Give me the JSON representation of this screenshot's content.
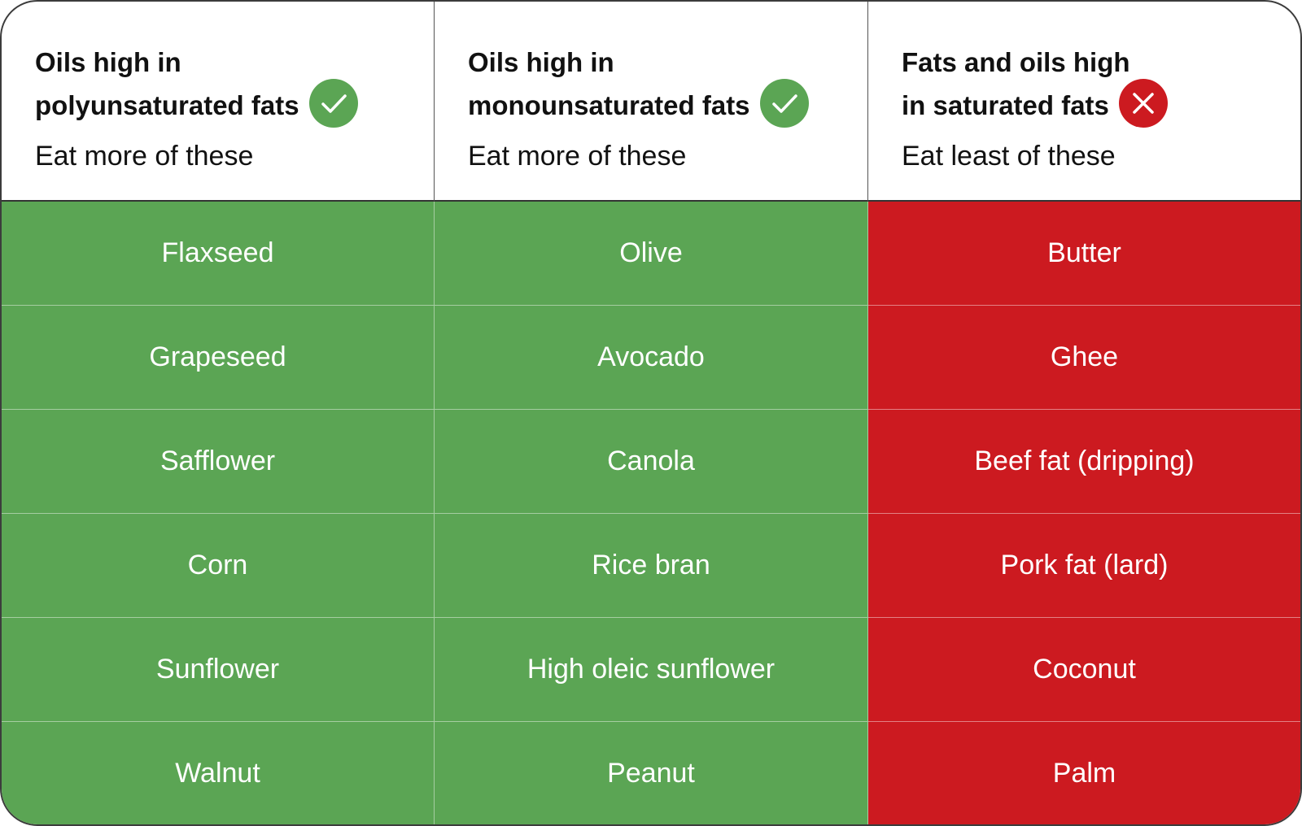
{
  "colors": {
    "good": "#5ba554",
    "bad": "#cc1a20"
  },
  "columns": [
    {
      "title_line1": "Oils high in",
      "title_line2": "polyunsaturated fats",
      "subtitle": "Eat more of these",
      "icon": "check-circle-icon",
      "items": [
        "Flaxseed",
        "Grapeseed",
        "Safflower",
        "Corn",
        "Sunflower",
        "Walnut"
      ]
    },
    {
      "title_line1": "Oils high in",
      "title_line2": "monounsaturated fats",
      "subtitle": "Eat more of these",
      "icon": "check-circle-icon",
      "items": [
        "Olive",
        "Avocado",
        "Canola",
        "Rice bran",
        "High oleic sunflower",
        "Peanut"
      ]
    },
    {
      "title_line1": "Fats and oils high",
      "title_line2": "in saturated fats",
      "subtitle": "Eat least of these",
      "icon": "x-circle-icon",
      "items": [
        "Butter",
        "Ghee",
        "Beef fat (dripping)",
        "Pork fat (lard)",
        "Coconut",
        "Palm"
      ]
    }
  ]
}
